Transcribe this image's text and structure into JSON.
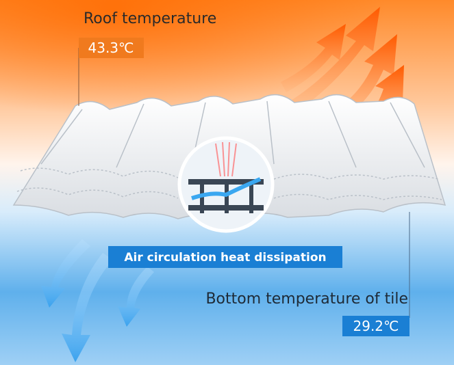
{
  "top_label": {
    "title": "Roof temperature",
    "value": "43.3℃"
  },
  "middle_label": "Air circulation heat dissipation",
  "bottom_label": {
    "title": "Bottom temperature of tile",
    "value": "29.2℃"
  }
}
